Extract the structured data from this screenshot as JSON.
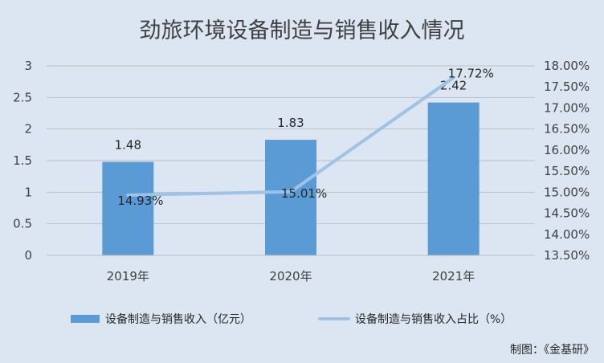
{
  "chart_data": {
    "type": "bar",
    "title": "劲旅环境设备制造与销售收入情况",
    "categories": [
      "2019年",
      "2020年",
      "2021年"
    ],
    "series": [
      {
        "name": "设备制造与销售收入（亿元）",
        "type": "bar",
        "axis": "left",
        "values": [
          1.48,
          1.83,
          2.42
        ],
        "data_labels": [
          "1.48",
          "1.83",
          "2.42"
        ],
        "color": "#5b9bd5"
      },
      {
        "name": "设备制造与销售收入占比（%）",
        "type": "line",
        "axis": "right",
        "values": [
          14.93,
          15.01,
          17.72
        ],
        "data_labels": [
          "14.93%",
          "15.01%",
          "17.72%"
        ],
        "color": "#9dc3e6"
      }
    ],
    "y_left": {
      "ylim": [
        0,
        3
      ],
      "ticks": [
        "0",
        "0.5",
        "1",
        "1.5",
        "2",
        "2.5",
        "3"
      ]
    },
    "y_right": {
      "ylim": [
        13.5,
        18
      ],
      "ticks": [
        "13.50%",
        "14.00%",
        "14.50%",
        "15.00%",
        "15.50%",
        "16.00%",
        "16.50%",
        "17.00%",
        "17.50%",
        "18.00%"
      ]
    },
    "grid": true,
    "legend": "bottom",
    "background": "#dce6f2"
  },
  "credit": "制图：《金基研》"
}
